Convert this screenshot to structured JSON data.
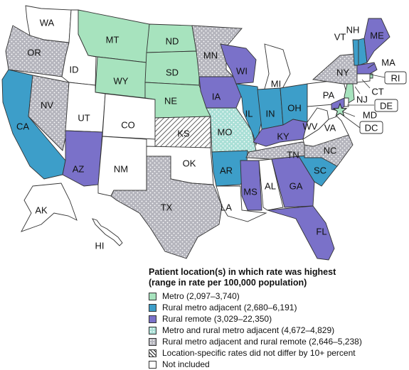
{
  "colors": {
    "metro": "#a7e3be",
    "rural_metro_adjacent": "#3d9ec9",
    "rural_remote": "#7a71c9",
    "metro_and_rural_metro_adjacent": "#a9dfd6",
    "rural_metro_adjacent_and_rural_remote": "#b5b5bd",
    "no_difference": "#ffffff",
    "not_included": "#ffffff",
    "border": "#333333"
  },
  "legend": {
    "title_line1": "Patient location(s)  in which rate was highest",
    "title_line2": "(range in rate per 100,000  population)",
    "items": [
      {
        "label": "Metro (2,097–3,740)",
        "category": "metro"
      },
      {
        "label": "Rural  metro adjacent (2,680–6,191)",
        "category": "rural_metro_adjacent"
      },
      {
        "label": "Rural remote (3,029–22,350)",
        "category": "rural_remote"
      },
      {
        "label": "Metro and rural metro adjacent (4,672–4,829)",
        "category": "metro_and_rural_metro_adjacent"
      },
      {
        "label": "Rural  metro adjacent and rural remote (2,646–5,238)",
        "category": "rural_metro_adjacent_and_rural_remote"
      },
      {
        "label": "Location-specific rates did not differ by 10+ percent",
        "category": "no_difference"
      },
      {
        "label": "Not included",
        "category": "not_included"
      }
    ]
  },
  "states": [
    {
      "abbr": "WA",
      "category": "not_included"
    },
    {
      "abbr": "OR",
      "category": "rural_metro_adjacent_and_rural_remote"
    },
    {
      "abbr": "CA",
      "category": "rural_metro_adjacent"
    },
    {
      "abbr": "ID",
      "category": "not_included"
    },
    {
      "abbr": "NV",
      "category": "rural_metro_adjacent_and_rural_remote"
    },
    {
      "abbr": "MT",
      "category": "metro"
    },
    {
      "abbr": "WY",
      "category": "metro"
    },
    {
      "abbr": "UT",
      "category": "not_included"
    },
    {
      "abbr": "AZ",
      "category": "rural_remote"
    },
    {
      "abbr": "CO",
      "category": "not_included"
    },
    {
      "abbr": "NM",
      "category": "not_included"
    },
    {
      "abbr": "ND",
      "category": "metro"
    },
    {
      "abbr": "SD",
      "category": "metro"
    },
    {
      "abbr": "NE",
      "category": "metro"
    },
    {
      "abbr": "KS",
      "category": "no_difference"
    },
    {
      "abbr": "OK",
      "category": "not_included"
    },
    {
      "abbr": "TX",
      "category": "rural_metro_adjacent_and_rural_remote"
    },
    {
      "abbr": "MN",
      "category": "rural_metro_adjacent_and_rural_remote"
    },
    {
      "abbr": "IA",
      "category": "rural_remote"
    },
    {
      "abbr": "MO",
      "category": "metro_and_rural_metro_adjacent"
    },
    {
      "abbr": "AR",
      "category": "rural_metro_adjacent"
    },
    {
      "abbr": "LA",
      "category": "not_included"
    },
    {
      "abbr": "WI",
      "category": "rural_remote"
    },
    {
      "abbr": "IL",
      "category": "rural_metro_adjacent"
    },
    {
      "abbr": "MI",
      "category": "not_included"
    },
    {
      "abbr": "IN",
      "category": "rural_metro_adjacent"
    },
    {
      "abbr": "OH",
      "category": "rural_metro_adjacent"
    },
    {
      "abbr": "KY",
      "category": "rural_remote"
    },
    {
      "abbr": "TN",
      "category": "rural_metro_adjacent_and_rural_remote"
    },
    {
      "abbr": "MS",
      "category": "rural_remote"
    },
    {
      "abbr": "AL",
      "category": "not_included"
    },
    {
      "abbr": "GA",
      "category": "rural_remote"
    },
    {
      "abbr": "FL",
      "category": "rural_remote"
    },
    {
      "abbr": "SC",
      "category": "rural_metro_adjacent"
    },
    {
      "abbr": "NC",
      "category": "rural_metro_adjacent_and_rural_remote"
    },
    {
      "abbr": "VA",
      "category": "not_included"
    },
    {
      "abbr": "WV",
      "category": "not_included"
    },
    {
      "abbr": "PA",
      "category": "not_included"
    },
    {
      "abbr": "NY",
      "category": "rural_metro_adjacent_and_rural_remote"
    },
    {
      "abbr": "VT",
      "category": "rural_metro_adjacent"
    },
    {
      "abbr": "NH",
      "category": "rural_metro_adjacent"
    },
    {
      "abbr": "ME",
      "category": "rural_remote"
    },
    {
      "abbr": "MA",
      "category": "rural_remote"
    },
    {
      "abbr": "RI",
      "category": "metro"
    },
    {
      "abbr": "CT",
      "category": "not_included"
    },
    {
      "abbr": "NJ",
      "category": "metro"
    },
    {
      "abbr": "DE",
      "category": "not_included"
    },
    {
      "abbr": "MD",
      "category": "rural_remote"
    },
    {
      "abbr": "DC",
      "category": "metro"
    },
    {
      "abbr": "AK",
      "category": "not_included"
    },
    {
      "abbr": "HI",
      "category": "not_included"
    }
  ]
}
